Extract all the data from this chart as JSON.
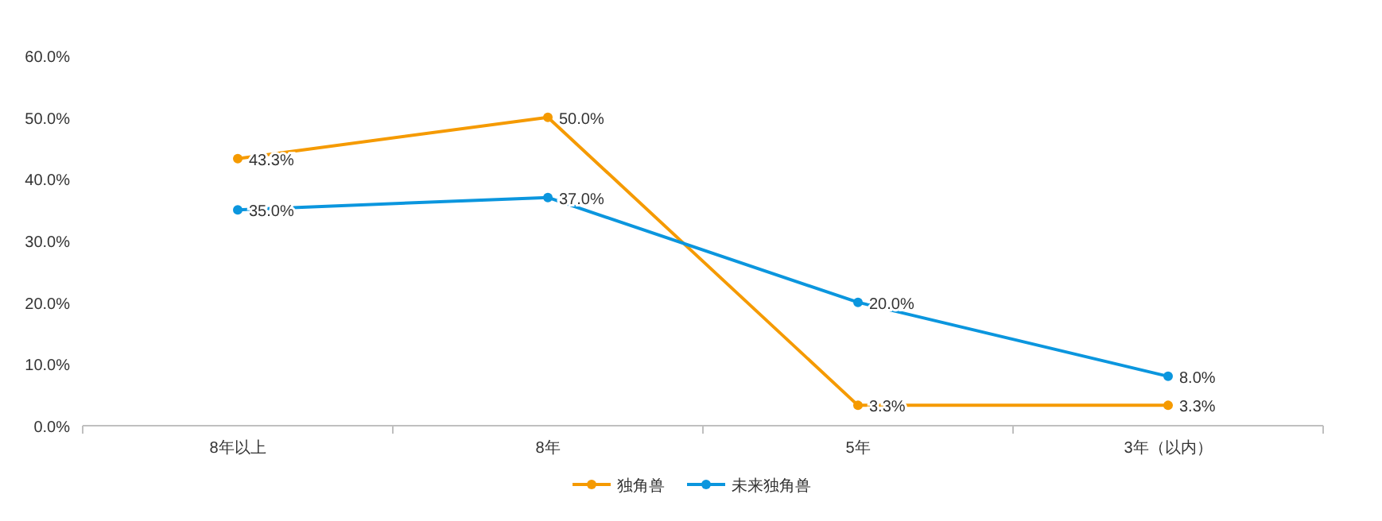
{
  "chart_data": {
    "type": "line",
    "categories": [
      "8年以上",
      "8年",
      "5年",
      "3年（以内）"
    ],
    "series": [
      {
        "name": "独角兽",
        "color": "#f59a00",
        "values": [
          43.3,
          50.0,
          3.3,
          3.3
        ],
        "value_labels": [
          "43.3%",
          "50.0%",
          "3.3%",
          "3.3%"
        ]
      },
      {
        "name": "未来独角兽",
        "color": "#0b96de",
        "values": [
          35.0,
          37.0,
          20.0,
          8.0
        ],
        "value_labels": [
          "35.0%",
          "37.0%",
          "20.0%",
          "8.0%"
        ]
      }
    ],
    "ylim": [
      0,
      60
    ],
    "yticks": [
      {
        "value": 0,
        "label": "0.0%"
      },
      {
        "value": 10,
        "label": "10.0%"
      },
      {
        "value": 20,
        "label": "20.0%"
      },
      {
        "value": 30,
        "label": "30.0%"
      },
      {
        "value": 40,
        "label": "40.0%"
      },
      {
        "value": 50,
        "label": "50.0%"
      },
      {
        "value": 60,
        "label": "60.0%"
      }
    ],
    "grid": false,
    "legend": "bottom",
    "marker": "circle",
    "line_style": "solid"
  }
}
